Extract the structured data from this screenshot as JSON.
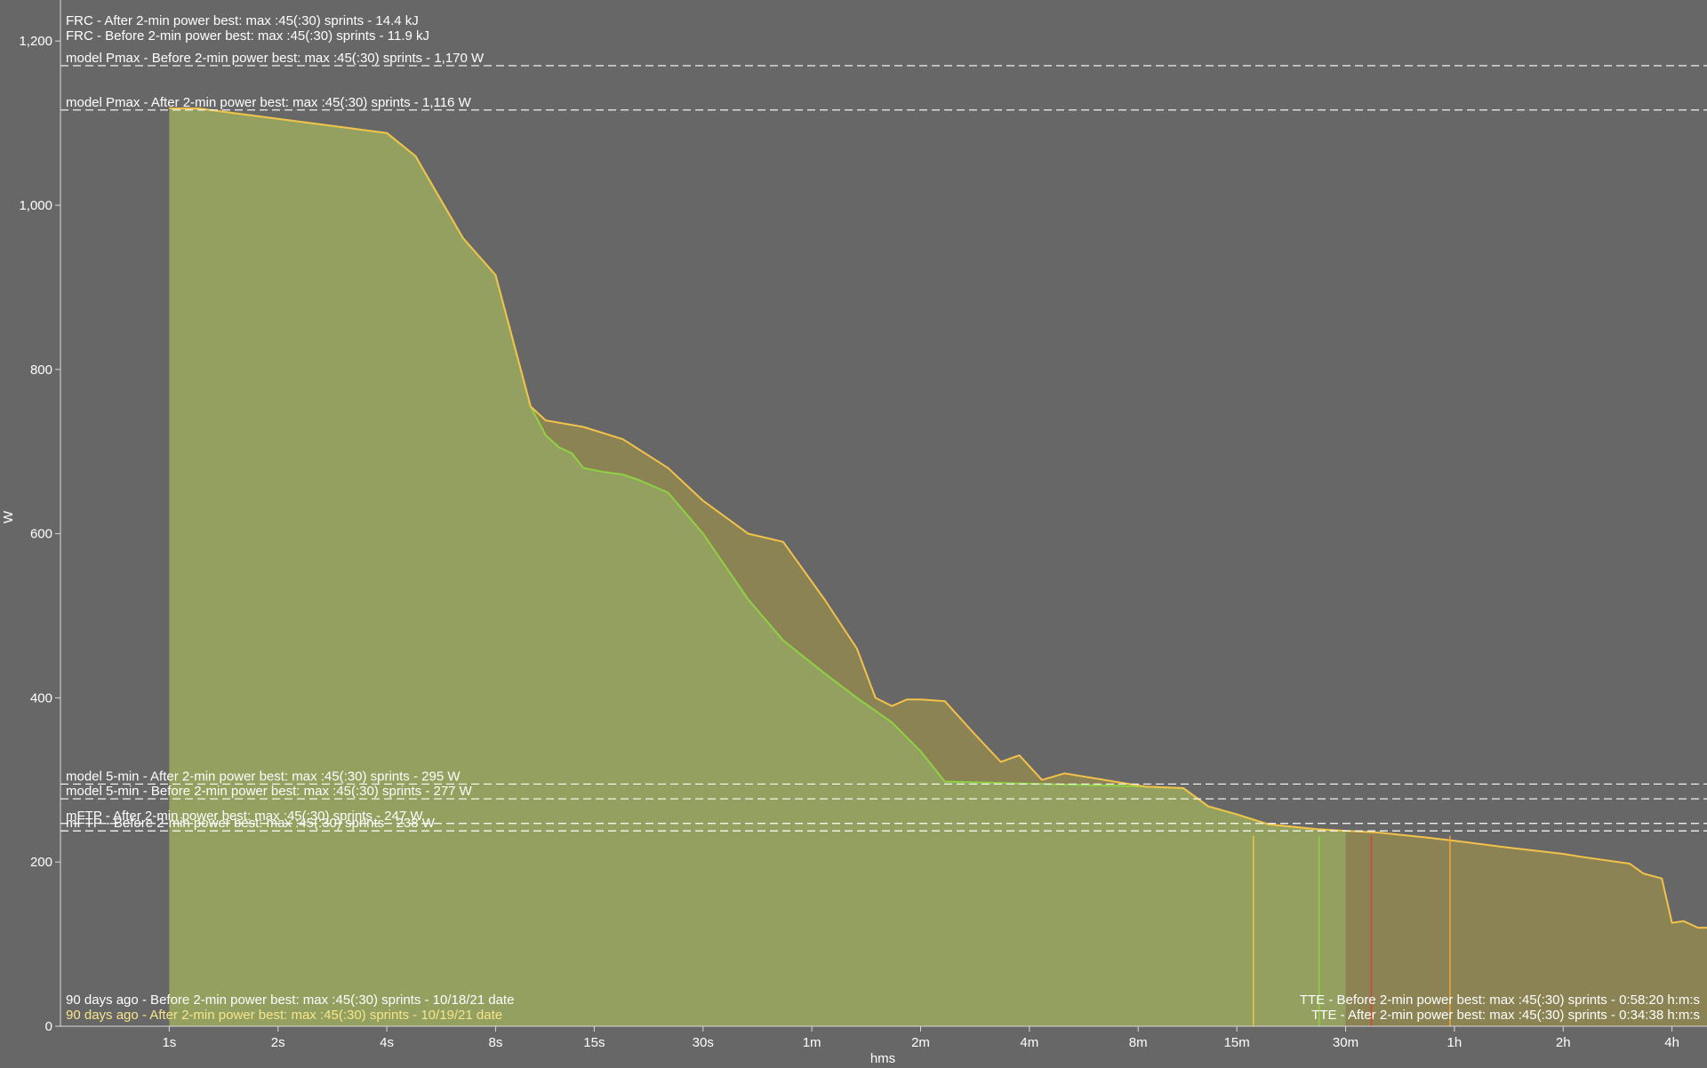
{
  "colors": {
    "background": "#676767",
    "before_series": "#f3c24a",
    "after_series": "#8fd144",
    "before_fill": "#8b8353",
    "after_fill": "#93a060",
    "marker_red": "#d9423a",
    "marker_orange": "#f0a23a",
    "annotation_text": "#ffffff",
    "date_before_text": "#ffffff",
    "date_after_text": "#f6e58c"
  },
  "chart_data": {
    "type": "area",
    "xlabel": "hms",
    "ylabel": "W",
    "x_scale": "log",
    "x_ticks": [
      {
        "label": "1s",
        "seconds": 1
      },
      {
        "label": "2s",
        "seconds": 2
      },
      {
        "label": "4s",
        "seconds": 4
      },
      {
        "label": "8s",
        "seconds": 8
      },
      {
        "label": "15s",
        "seconds": 15
      },
      {
        "label": "30s",
        "seconds": 30
      },
      {
        "label": "1m",
        "seconds": 60
      },
      {
        "label": "2m",
        "seconds": 120
      },
      {
        "label": "4m",
        "seconds": 240
      },
      {
        "label": "8m",
        "seconds": 480
      },
      {
        "label": "15m",
        "seconds": 900
      },
      {
        "label": "30m",
        "seconds": 1800
      },
      {
        "label": "1h",
        "seconds": 3600
      },
      {
        "label": "2h",
        "seconds": 7200
      },
      {
        "label": "4h",
        "seconds": 14400
      }
    ],
    "y_ticks": [
      {
        "label": "0",
        "value": 0
      },
      {
        "label": "200",
        "value": 200
      },
      {
        "label": "400",
        "value": 400
      },
      {
        "label": "600",
        "value": 600
      },
      {
        "label": "800",
        "value": 800
      },
      {
        "label": "1,000",
        "value": 1000
      },
      {
        "label": "1,200",
        "value": 1200
      }
    ],
    "xlim_seconds": [
      0.5,
      18000
    ],
    "ylim": [
      0,
      1250
    ],
    "series": [
      {
        "key": "before",
        "x_seconds": [
          1,
          1.2,
          4,
          4.8,
          5.5,
          6.5,
          8,
          10,
          11,
          14,
          18,
          24,
          30,
          40,
          50,
          65,
          80,
          90,
          100,
          110,
          120,
          140,
          170,
          200,
          225,
          260,
          300,
          500,
          640,
          750,
          900,
          1100,
          1500,
          1800,
          2200,
          3000,
          3600,
          5000,
          7200,
          8200,
          11000,
          12000,
          13500,
          14400,
          15500,
          17000,
          18000
        ],
        "y": [
          1118,
          1118,
          1088,
          1060,
          1015,
          960,
          915,
          755,
          738,
          730,
          715,
          680,
          640,
          600,
          590,
          520,
          460,
          400,
          390,
          398,
          398,
          396,
          355,
          322,
          330,
          300,
          308,
          292,
          290,
          268,
          258,
          246,
          240,
          238,
          236,
          230,
          226,
          218,
          210,
          206,
          198,
          186,
          180,
          126,
          128,
          120,
          120
        ]
      },
      {
        "key": "after",
        "x_seconds": [
          1,
          1.2,
          4,
          4.8,
          5.5,
          6.5,
          8,
          10,
          11,
          12,
          13,
          14,
          16,
          18,
          20,
          24,
          30,
          40,
          50,
          65,
          80,
          100,
          120,
          140,
          500,
          640,
          750,
          900,
          1100,
          1500,
          1800
        ],
        "y": [
          1118,
          1118,
          1088,
          1060,
          1015,
          960,
          915,
          755,
          720,
          705,
          698,
          680,
          675,
          672,
          665,
          650,
          600,
          520,
          470,
          430,
          400,
          370,
          335,
          298,
          292,
          290,
          268,
          258,
          246,
          240,
          238
        ]
      }
    ],
    "reference_lines": [
      {
        "label": "model Pmax - Before 2-min power best: max :45(:30) sprints - 1,170 W",
        "value": 1170
      },
      {
        "label": "model Pmax - After 2-min power best: max :45(:30) sprints - 1,116 W",
        "value": 1116
      },
      {
        "label": "model 5-min - After 2-min power best: max :45(:30) sprints - 295 W",
        "value": 295
      },
      {
        "label": "model 5-min - Before 2-min power best: max :45(:30) sprints - 277 W",
        "value": 277
      },
      {
        "label": "mFTP - After 2-min power best: max :45(:30) sprints - 247 W",
        "value": 247
      },
      {
        "label": "mFTP - Before 2-min power best: max :45(:30) sprints - 238 W",
        "value": 238
      }
    ],
    "vertical_markers": [
      {
        "seconds": 1000,
        "color": "#f3c24a"
      },
      {
        "seconds": 1520,
        "color": "#8fd144"
      },
      {
        "seconds": 2120,
        "color": "#d9423a"
      },
      {
        "seconds": 3500,
        "color": "#f0a23a"
      }
    ],
    "annotations": {
      "frc": [
        "FRC - After 2-min power best: max :45(:30) sprints - 14.4 kJ",
        "FRC - Before 2-min power best: max :45(:30) sprints - 11.9 kJ"
      ],
      "date_range": [
        "90 days ago - Before 2-min power best: max :45(:30) sprints - 10/18/21 date",
        "90 days ago - After 2-min power best: max :45(:30) sprints - 10/19/21 date"
      ],
      "tte": [
        "TTE - Before 2-min power best: max :45(:30) sprints - 0:58:20 h:m:s",
        "TTE - After 2-min power best: max :45(:30) sprints - 0:34:38 h:m:s"
      ]
    }
  }
}
